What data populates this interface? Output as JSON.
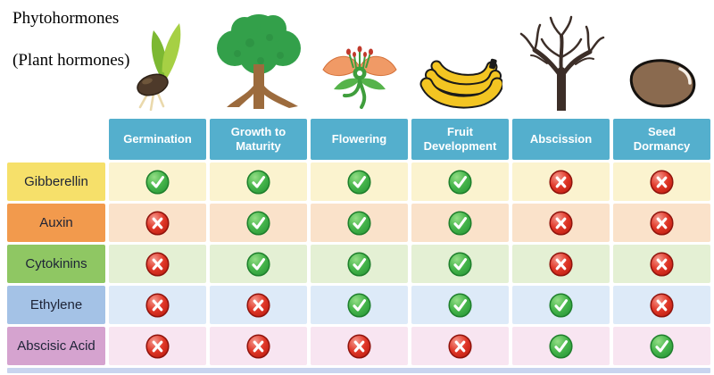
{
  "page": {
    "title_line1": "Phytohormones",
    "title_line2": "(Plant hormones)"
  },
  "colors": {
    "header_bg": "#54afcd",
    "header_text": "#ffffff",
    "check_green": "#3aa844",
    "cross_red": "#dd2c1d",
    "bottom_strip": "#c9d4ef"
  },
  "icons": [
    "germinating-seed",
    "mature-tree",
    "flower",
    "bananas",
    "leafless-tree",
    "seed-bean"
  ],
  "chart_data": {
    "type": "table",
    "title": "Phytohormones (Plant hormones)",
    "columns": [
      "Germination",
      "Growth to Maturity",
      "Flowering",
      "Fruit Development",
      "Abscission",
      "Seed Dormancy"
    ],
    "rows": [
      {
        "name": "Gibberellin",
        "label_color": "#f6e06a",
        "cell_tint": "#fbf3cf",
        "values": [
          "yes",
          "yes",
          "yes",
          "yes",
          "no",
          "no"
        ]
      },
      {
        "name": "Auxin",
        "label_color": "#f29a4d",
        "cell_tint": "#fae2ca",
        "values": [
          "no",
          "yes",
          "yes",
          "yes",
          "no",
          "no"
        ]
      },
      {
        "name": "Cytokinins",
        "label_color": "#8fc763",
        "cell_tint": "#e4f0d4",
        "values": [
          "no",
          "yes",
          "yes",
          "yes",
          "no",
          "no"
        ]
      },
      {
        "name": "Ethylene",
        "label_color": "#a4c2e6",
        "cell_tint": "#ddeaf8",
        "values": [
          "no",
          "no",
          "yes",
          "yes",
          "yes",
          "no"
        ]
      },
      {
        "name": "Abscisic Acid",
        "label_color": "#d5a3cf",
        "cell_tint": "#f8e5f1",
        "values": [
          "no",
          "no",
          "no",
          "no",
          "yes",
          "yes"
        ]
      }
    ]
  }
}
